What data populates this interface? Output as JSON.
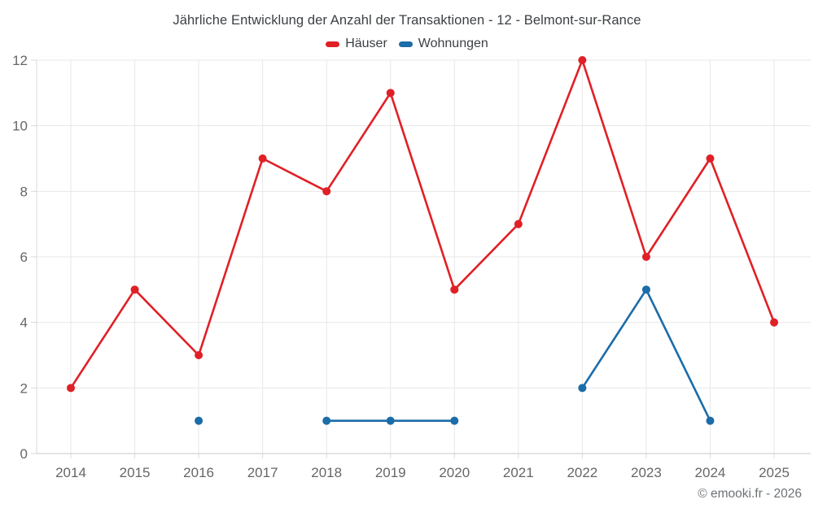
{
  "header": {
    "title": "Jährliche Entwicklung der Anzahl der Transaktionen - 12 - Belmont-sur-Rance"
  },
  "legend": {
    "items": [
      {
        "label": "Häuser",
        "color": "#e02026"
      },
      {
        "label": "Wohnungen",
        "color": "#1b6ca8"
      }
    ]
  },
  "footer": {
    "copyright": "© emooki.fr - 2026"
  },
  "chart_data": {
    "type": "line",
    "title": "Jährliche Entwicklung der Anzahl der Transaktionen - 12 - Belmont-sur-Rance",
    "categories": [
      "2014",
      "2015",
      "2016",
      "2017",
      "2018",
      "2019",
      "2020",
      "2021",
      "2022",
      "2023",
      "2024",
      "2025"
    ],
    "series": [
      {
        "name": "Häuser",
        "color": "#e02026",
        "values": [
          2,
          5,
          3,
          9,
          8,
          11,
          5,
          7,
          12,
          6,
          9,
          4
        ]
      },
      {
        "name": "Wohnungen",
        "color": "#1b6ca8",
        "values": [
          null,
          null,
          1,
          null,
          1,
          1,
          1,
          null,
          2,
          5,
          1,
          null
        ]
      }
    ],
    "xlabel": "",
    "ylabel": "",
    "ylim": [
      0,
      12
    ],
    "ytick_step": 2,
    "grid": true,
    "legend_position": "top",
    "colors": {
      "grid": "#e7e7e7",
      "axis": "#c9c9c9",
      "tick": "#d9d9d9",
      "axis_label": "#666666"
    }
  }
}
